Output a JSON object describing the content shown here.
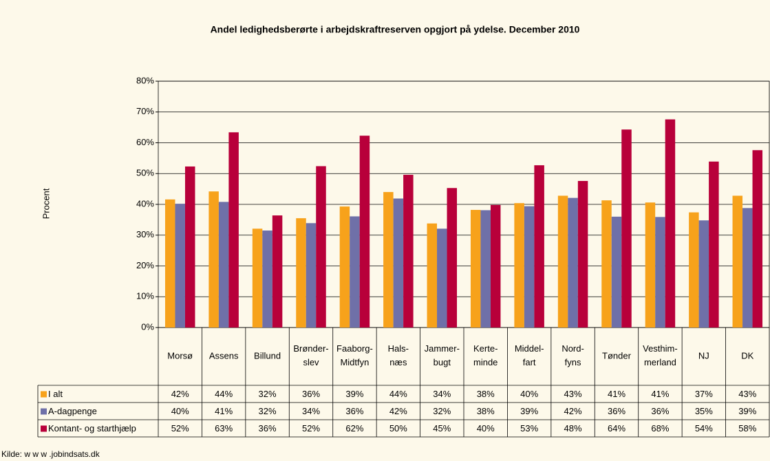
{
  "chart_data": {
    "type": "bar",
    "title": "Andel ledighedsberørte i arbejdskraftreserven opgjort på ydelse. December 2010",
    "y_label": "Procent",
    "source": "Kilde: w w w .jobindsats.dk",
    "categories": [
      "Morsø",
      "Assens",
      "Billund",
      "Brønder-slev",
      "Faaborg-Midtfyn",
      "Hals-næs",
      "Jammer-bugt",
      "Kerte-minde",
      "Middel-fart",
      "Nord-fyns",
      "Tønder",
      "Vesthim-merland",
      "NJ",
      "DK"
    ],
    "series": [
      {
        "name": "I alt",
        "color": "#f7a21b",
        "values": [
          41.6,
          44.2,
          32.1,
          35.5,
          39.3,
          44.0,
          33.8,
          38.2,
          40.4,
          42.8,
          41.3,
          40.6,
          37.4,
          42.8
        ],
        "value_labels": [
          "42%",
          "44%",
          "32%",
          "36%",
          "39%",
          "44%",
          "34%",
          "38%",
          "40%",
          "43%",
          "41%",
          "41%",
          "37%",
          "43%"
        ]
      },
      {
        "name": "A-dagpenge",
        "color": "#6f70a8",
        "values": [
          40.2,
          40.8,
          31.5,
          33.9,
          36.1,
          41.9,
          32.1,
          38.1,
          39.4,
          42.1,
          36.0,
          35.9,
          34.8,
          38.8
        ],
        "value_labels": [
          "40%",
          "41%",
          "32%",
          "34%",
          "36%",
          "42%",
          "32%",
          "38%",
          "39%",
          "42%",
          "36%",
          "36%",
          "35%",
          "39%"
        ]
      },
      {
        "name": "Kontant- og starthjælp",
        "color": "#b8003a",
        "values": [
          52.3,
          63.4,
          36.4,
          52.4,
          62.3,
          49.6,
          45.3,
          39.8,
          52.7,
          47.6,
          64.3,
          67.6,
          53.9,
          57.6
        ],
        "value_labels": [
          "52%",
          "63%",
          "36%",
          "52%",
          "62%",
          "50%",
          "45%",
          "40%",
          "53%",
          "48%",
          "64%",
          "68%",
          "54%",
          "58%"
        ]
      }
    ],
    "ylim": [
      0,
      80
    ],
    "yticks": [
      {
        "value": 0,
        "label": "0%"
      },
      {
        "value": 10,
        "label": "10%"
      },
      {
        "value": 20,
        "label": "20%"
      },
      {
        "value": 30,
        "label": "30%"
      },
      {
        "value": 40,
        "label": "40%"
      },
      {
        "value": 50,
        "label": "50%"
      },
      {
        "value": 60,
        "label": "60%"
      },
      {
        "value": 70,
        "label": "70%"
      },
      {
        "value": 80,
        "label": "80%"
      }
    ],
    "grid": true
  }
}
